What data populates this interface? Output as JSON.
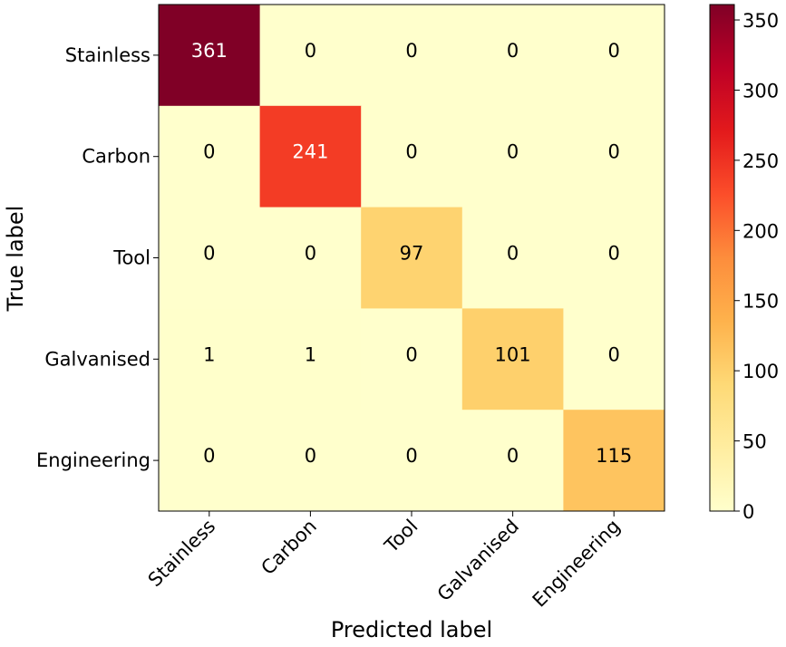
{
  "chart_data": {
    "type": "heatmap",
    "title": "",
    "xlabel": "Predicted label",
    "ylabel": "True label",
    "x_categories": [
      "Stainless",
      "Carbon",
      "Tool",
      "Galvanised",
      "Engineering"
    ],
    "y_categories": [
      "Stainless",
      "Carbon",
      "Tool",
      "Galvanised",
      "Engineering"
    ],
    "matrix": [
      [
        361,
        0,
        0,
        0,
        0
      ],
      [
        0,
        241,
        0,
        0,
        0
      ],
      [
        0,
        0,
        97,
        0,
        0
      ],
      [
        1,
        1,
        0,
        101,
        0
      ],
      [
        0,
        0,
        0,
        0,
        115
      ]
    ],
    "colormap": "YlOrRd",
    "colorbar": {
      "range": [
        0,
        361
      ],
      "ticks": [
        0,
        50,
        100,
        150,
        200,
        250,
        300,
        350
      ]
    },
    "text_color_threshold": 180.5,
    "text_colors": {
      "light": "#ffffff",
      "dark": "#000000"
    }
  }
}
